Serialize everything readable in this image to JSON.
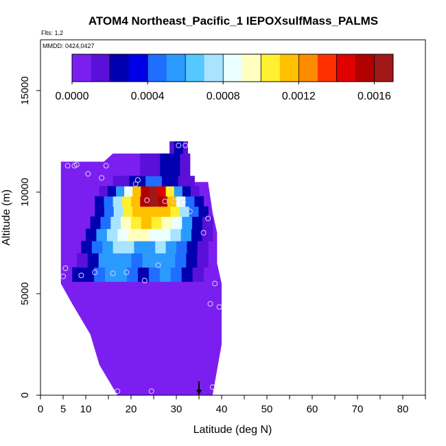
{
  "chart_data": {
    "type": "heatmap",
    "title": "ATOM4 Northeast_Pacific_1 IEPOXsulfMass_PALMS",
    "flights_label": "Flts: 1,2",
    "mmdd_label": "MMDD: 0424,0427",
    "xlabel": "Latitude (deg N)",
    "ylabel": "Altitude (m)",
    "xlim": [
      0,
      85
    ],
    "ylim": [
      0,
      17500
    ],
    "x_tick_labels": [
      "0",
      "5",
      "10",
      "20",
      "30",
      "40",
      "50",
      "60",
      "70",
      "80"
    ],
    "y_tick_labels": [
      "0",
      "5000",
      "10000",
      "15000"
    ],
    "colorbar": {
      "range": [
        0,
        0.0017
      ],
      "tick_labels": [
        "0.0000",
        "0.0004",
        "0.0008",
        "0.0012",
        "0.0016"
      ],
      "colors": [
        "#7B1FF0",
        "#5A10D8",
        "#0000B0",
        "#0000E8",
        "#1E6EFF",
        "#2A9AFF",
        "#55C8FF",
        "#A8E4FF",
        "#EAFFFF",
        "#FFFFC0",
        "#FFF030",
        "#FFC000",
        "#FF8C00",
        "#FF3000",
        "#E00000",
        "#B00000",
        "#A01818"
      ]
    },
    "colors": {
      "background_fill": "#7B1FF0",
      "sample_marker": "#E0D0FF",
      "arrow": "#000000"
    },
    "fill_polygon": [
      [
        4.5,
        11500
      ],
      [
        14,
        11500
      ],
      [
        16,
        11900
      ],
      [
        30,
        11900
      ],
      [
        31,
        12500
      ],
      [
        32,
        12500
      ],
      [
        33,
        10500
      ],
      [
        37,
        10500
      ],
      [
        38,
        9000
      ],
      [
        39,
        8000
      ],
      [
        39,
        6500
      ],
      [
        40,
        5500
      ],
      [
        40,
        2500
      ],
      [
        38,
        0
      ],
      [
        17,
        0
      ],
      [
        13,
        1500
      ],
      [
        11,
        3000
      ],
      [
        7,
        4500
      ],
      [
        4.5,
        5500
      ]
    ],
    "bands": [
      {
        "y0": 5600,
        "y1": 6300,
        "x0": 7,
        "x1": 36,
        "values": [
          0.0002,
          0.0003,
          0.0004,
          0.0005,
          0.0005,
          0.0004,
          0.0003,
          0.0004,
          0.0005,
          0.0004,
          0.0002,
          0.0001
        ]
      },
      {
        "y0": 6300,
        "y1": 7000,
        "x0": 8,
        "x1": 37,
        "values": [
          0.0001,
          0.0002,
          0.0005,
          0.0006,
          0.0005,
          0.0004,
          0.0005,
          0.0006,
          0.0005,
          0.0004,
          0.0003,
          0.0001
        ]
      },
      {
        "y0": 7000,
        "y1": 7600,
        "x0": 9,
        "x1": 37,
        "values": [
          0.0002,
          0.0004,
          0.0006,
          0.0007,
          0.0007,
          0.0006,
          0.0006,
          0.0007,
          0.0006,
          0.0004,
          0.0002,
          0.0001
        ]
      },
      {
        "y0": 7600,
        "y1": 8200,
        "x0": 10,
        "x1": 38,
        "values": [
          0.0002,
          0.0005,
          0.0007,
          0.0008,
          0.0009,
          0.0009,
          0.0008,
          0.0008,
          0.0007,
          0.0005,
          0.0003,
          0.0001
        ]
      },
      {
        "y0": 8200,
        "y1": 8800,
        "x0": 11,
        "x1": 38,
        "values": [
          0.0002,
          0.0004,
          0.0007,
          0.0009,
          0.001,
          0.0011,
          0.001,
          0.0009,
          0.0008,
          0.0006,
          0.0003,
          0.0001
        ]
      },
      {
        "y0": 8800,
        "y1": 9300,
        "x0": 12,
        "x1": 37,
        "values": [
          0.0002,
          0.0004,
          0.0007,
          0.001,
          0.0011,
          0.0012,
          0.0012,
          0.0011,
          0.001,
          0.0007,
          0.0004,
          0.0002
        ]
      },
      {
        "y0": 9300,
        "y1": 9800,
        "x0": 12,
        "x1": 36,
        "values": [
          0.0002,
          0.0004,
          0.0007,
          0.001,
          0.0012,
          0.0015,
          0.0016,
          0.0015,
          0.0012,
          0.0008,
          0.0004,
          0.0002
        ]
      },
      {
        "y0": 9800,
        "y1": 10300,
        "x0": 13,
        "x1": 35,
        "values": [
          0.0001,
          0.0003,
          0.0005,
          0.0008,
          0.0012,
          0.0015,
          0.0017,
          0.0014,
          0.001,
          0.0006,
          0.0003,
          0.0001
        ]
      },
      {
        "y0": 10300,
        "y1": 10800,
        "x0": 16,
        "x1": 34,
        "values": [
          0.0001,
          0.0001,
          0.0002,
          0.0003,
          0.0004,
          0.0004,
          0.0003,
          0.0002,
          0.0001,
          0.0001
        ]
      },
      {
        "y0": 10800,
        "y1": 11900,
        "x0": 22,
        "x1": 33,
        "values": [
          0.0001,
          0.0001,
          0.0002,
          0.0002,
          0.0001
        ]
      },
      {
        "y0": 11900,
        "y1": 12500,
        "x0": 28.5,
        "x1": 32.5,
        "values": [
          0.0001,
          0.0002,
          0.0002,
          0.0001
        ]
      }
    ],
    "sample_points": [
      [
        5,
        5850
      ],
      [
        5.5,
        6250
      ],
      [
        6,
        11300
      ],
      [
        7.5,
        11300
      ],
      [
        8,
        11350
      ],
      [
        9,
        5900
      ],
      [
        10.5,
        10900
      ],
      [
        12,
        6050
      ],
      [
        13.5,
        10700
      ],
      [
        14.5,
        11300
      ],
      [
        16,
        6000
      ],
      [
        17,
        200
      ],
      [
        19,
        6050
      ],
      [
        21,
        10400
      ],
      [
        21.5,
        10600
      ],
      [
        23,
        5650
      ],
      [
        23.5,
        9600
      ],
      [
        24.5,
        200
      ],
      [
        26,
        6400
      ],
      [
        27.5,
        9550
      ],
      [
        29.5,
        9550
      ],
      [
        30.5,
        12300
      ],
      [
        31.5,
        9500
      ],
      [
        32,
        12300
      ],
      [
        33,
        9050
      ],
      [
        36,
        8000
      ],
      [
        37,
        8700
      ],
      [
        37.5,
        4500
      ],
      [
        38,
        400
      ],
      [
        38.5,
        5500
      ],
      [
        39.5,
        4350
      ]
    ],
    "arrow_x": 35
  }
}
